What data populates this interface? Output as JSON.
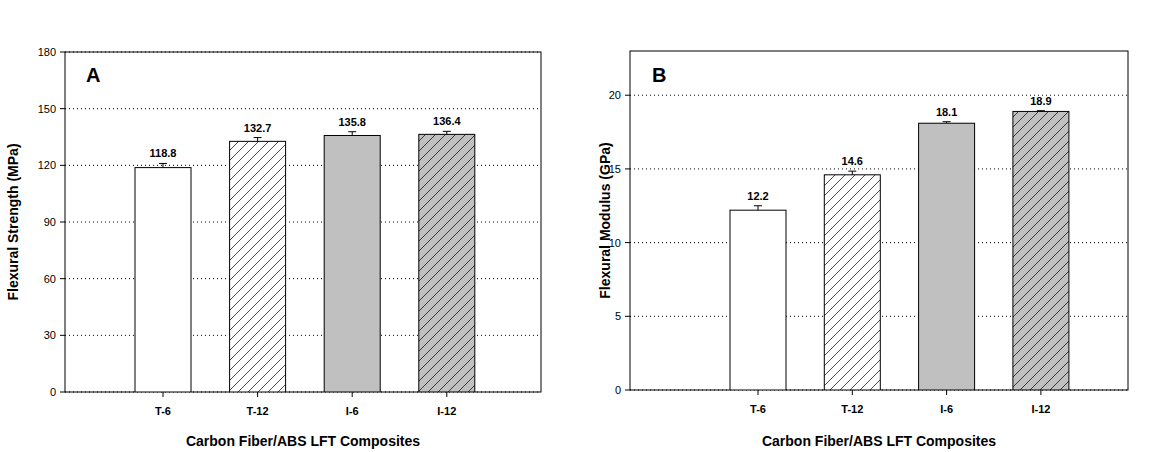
{
  "chart_data": [
    {
      "type": "bar",
      "annotation": "A",
      "x_label": "Carbon Fiber/ABS LFT Composites",
      "y_label": "Flexural Strength (MPa)",
      "categories": [
        "T-6",
        "T-12",
        "I-6",
        "I-12"
      ],
      "values": [
        118.8,
        132.7,
        135.8,
        136.4
      ],
      "errors": [
        2.2,
        2.0,
        2.0,
        1.6
      ],
      "colors": [
        "#ffffff",
        "#ffffff",
        "#c0c0c0",
        "#c0c0c0"
      ],
      "ylim": [
        0,
        180
      ],
      "yticks": [
        0,
        30,
        60,
        90,
        120,
        150,
        180
      ],
      "grid": true,
      "data_labels": true
    },
    {
      "type": "bar",
      "annotation": "B",
      "x_label": "Carbon Fiber/ABS LFT Composites",
      "y_label": "Flexural Modulus (GPa)",
      "categories": [
        "T-6",
        "T-12",
        "I-6",
        "I-12"
      ],
      "values": [
        12.2,
        14.6,
        18.1,
        18.9
      ],
      "errors": [
        0.3,
        0.25,
        0.1,
        0.05
      ],
      "colors": [
        "#ffffff",
        "#ffffff",
        "#c0c0c0",
        "#c0c0c0"
      ],
      "ylim": [
        0,
        23
      ],
      "yticks": [
        0,
        5,
        10,
        15,
        20
      ],
      "grid": true,
      "data_labels": true
    }
  ]
}
